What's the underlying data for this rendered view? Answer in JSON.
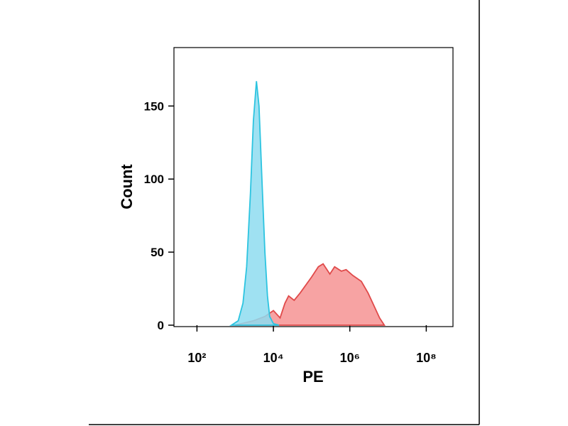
{
  "chart_data": {
    "type": "histogram-overlay",
    "xlabel": "PE",
    "ylabel": "Count",
    "xscale": "log",
    "xlim": [
      25,
      500000000
    ],
    "ylim": [
      0,
      190
    ],
    "xticks": [
      {
        "value": 100,
        "label": "10²"
      },
      {
        "value": 10000,
        "label": "10⁴"
      },
      {
        "value": 1000000,
        "label": "10⁶"
      },
      {
        "value": 100000000,
        "label": "10⁸"
      }
    ],
    "yticks": [
      0,
      50,
      100,
      150
    ],
    "series": [
      {
        "color": "#e04a4a",
        "fill": "#f7a3a3",
        "x": [
          1000,
          3000,
          6000,
          10000,
          15000,
          20000,
          25000,
          35000,
          50000,
          100000,
          150000,
          200000,
          300000,
          400000,
          600000,
          800000,
          1200000,
          2000000,
          3000000,
          4000000,
          6000000,
          8000000
        ],
        "values": [
          0,
          3,
          6,
          10,
          5,
          15,
          20,
          17,
          22,
          33,
          40,
          42,
          35,
          40,
          37,
          38,
          34,
          30,
          22,
          15,
          5,
          0
        ]
      },
      {
        "color": "#2cc4e0",
        "fill": "#8edcf0",
        "x": [
          800,
          1200,
          1600,
          2000,
          2500,
          3000,
          3600,
          4200,
          5000,
          6000,
          7000,
          8000,
          10000,
          14000
        ],
        "values": [
          0,
          3,
          15,
          40,
          90,
          140,
          167,
          150,
          100,
          50,
          20,
          6,
          1,
          0
        ]
      }
    ]
  }
}
